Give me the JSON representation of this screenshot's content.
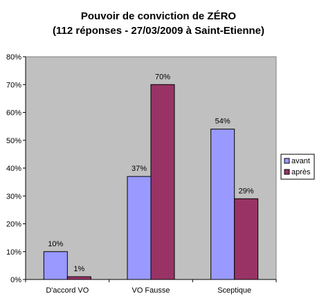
{
  "chart_data": {
    "type": "bar",
    "title_line1": "Pouvoir de conviction de ZÉRO",
    "title_line2": "(112 réponses - 27/03/2009 à Saint-Etienne)",
    "categories": [
      "D'accord VO",
      "VO Fausse",
      "Sceptique"
    ],
    "series": [
      {
        "name": "avant",
        "values": [
          10,
          37,
          54
        ],
        "labels": [
          "10%",
          "37%",
          "54%"
        ],
        "color": "#9999FF"
      },
      {
        "name": "après",
        "values": [
          1,
          70,
          29
        ],
        "labels": [
          "1%",
          "70%",
          "29%"
        ],
        "color": "#993366"
      }
    ],
    "yticks": [
      "0%",
      "10%",
      "20%",
      "30%",
      "40%",
      "50%",
      "60%",
      "70%",
      "80%"
    ],
    "ylim": [
      0,
      80
    ],
    "ylabel": "",
    "xlabel": "",
    "grid": false,
    "legend_position": "right",
    "plot_background": "#C0C0C0"
  }
}
